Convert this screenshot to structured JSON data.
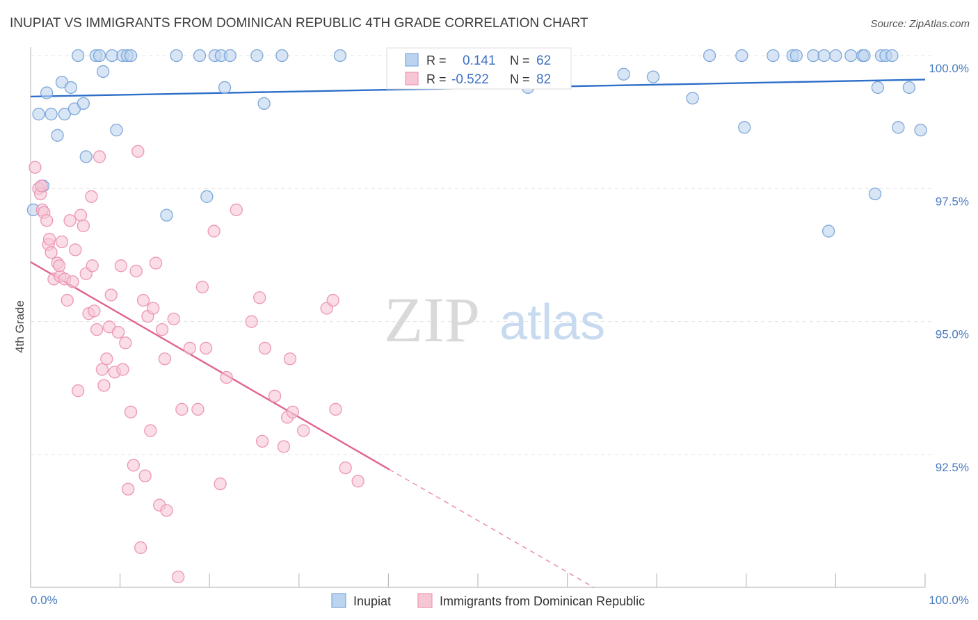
{
  "chart_data": {
    "type": "scatter",
    "title": "INUPIAT VS IMMIGRANTS FROM DOMINICAN REPUBLIC 4TH GRADE CORRELATION CHART",
    "source": "Source: ZipAtlas.com",
    "ylabel": "4th Grade",
    "xlim": [
      0,
      100
    ],
    "ylim": [
      90.0,
      100.5
    ],
    "y_ticks": [
      {
        "value": 92.5,
        "label": "92.5%"
      },
      {
        "value": 95.0,
        "label": "95.0%"
      },
      {
        "value": 97.5,
        "label": "97.5%"
      },
      {
        "value": 100.0,
        "label": "100.0%"
      }
    ],
    "x_tick_labels": {
      "left": "0.0%",
      "right": "100.0%"
    },
    "x_minor_ticks": [
      10,
      20,
      30,
      40,
      50,
      60,
      70,
      80,
      90
    ],
    "watermark": {
      "part1": "ZIP",
      "part2": "atlas"
    },
    "stats": [
      {
        "r_label": "R =",
        "r_value": "0.141",
        "n_label": "N =",
        "n_value": "62"
      },
      {
        "r_label": "R =",
        "r_value": "-0.522",
        "n_label": "N =",
        "n_value": "82"
      }
    ],
    "series": [
      {
        "name": "Inupiat",
        "fill": "#bcd3ef",
        "stroke": "#7ea8db",
        "line_color": "#2e6fc9",
        "trend": {
          "x0": 0,
          "y0": 99.23,
          "x1": 100,
          "y1": 99.55
        },
        "points": [
          [
            0.3,
            97.1
          ],
          [
            0.9,
            98.9
          ],
          [
            1.8,
            99.3
          ],
          [
            2.3,
            98.9
          ],
          [
            3.0,
            98.5
          ],
          [
            3.5,
            99.5
          ],
          [
            3.8,
            98.9
          ],
          [
            4.5,
            99.4
          ],
          [
            4.9,
            99.0
          ],
          [
            5.3,
            100.0
          ],
          [
            5.9,
            99.1
          ],
          [
            6.2,
            98.1
          ],
          [
            7.3,
            100.0
          ],
          [
            7.7,
            100.0
          ],
          [
            8.1,
            99.7
          ],
          [
            9.1,
            100.0
          ],
          [
            9.6,
            98.6
          ],
          [
            10.3,
            100.0
          ],
          [
            10.8,
            100.0
          ],
          [
            11.2,
            100.0
          ],
          [
            1.4,
            97.55
          ],
          [
            15.2,
            97.0
          ],
          [
            16.3,
            100.0
          ],
          [
            18.9,
            100.0
          ],
          [
            20.6,
            100.0
          ],
          [
            21.3,
            100.0
          ],
          [
            21.7,
            99.4
          ],
          [
            22.3,
            100.0
          ],
          [
            25.3,
            100.0
          ],
          [
            26.1,
            99.1
          ],
          [
            28.1,
            100.0
          ],
          [
            19.7,
            97.35
          ],
          [
            34.6,
            100.0
          ],
          [
            44.8,
            100.0
          ],
          [
            47.3,
            100.0
          ],
          [
            50.6,
            100.0
          ],
          [
            55.6,
            99.4
          ],
          [
            58.4,
            100.0
          ],
          [
            66.3,
            99.65
          ],
          [
            69.6,
            99.6
          ],
          [
            74.0,
            99.2
          ],
          [
            75.9,
            100.0
          ],
          [
            79.5,
            100.0
          ],
          [
            79.8,
            98.65
          ],
          [
            83.0,
            100.0
          ],
          [
            85.2,
            100.0
          ],
          [
            85.6,
            100.0
          ],
          [
            87.5,
            100.0
          ],
          [
            88.7,
            100.0
          ],
          [
            89.2,
            96.7
          ],
          [
            90.0,
            100.0
          ],
          [
            91.7,
            100.0
          ],
          [
            93.0,
            100.0
          ],
          [
            94.4,
            97.4
          ],
          [
            94.7,
            99.4
          ],
          [
            95.1,
            100.0
          ],
          [
            95.6,
            100.0
          ],
          [
            96.3,
            100.0
          ],
          [
            97.0,
            98.65
          ],
          [
            98.2,
            99.4
          ],
          [
            99.5,
            98.6
          ],
          [
            93.2,
            100.0
          ]
        ]
      },
      {
        "name": "Immigrants from Dominican Republic",
        "fill": "#f7c6d5",
        "stroke": "#ec97b3",
        "line_color": "#e0648c",
        "trend": {
          "x0": 0,
          "y0": 96.12,
          "x1": 40.1,
          "y1": 92.22
        },
        "trend_dash": {
          "x0": 40.1,
          "y0": 92.22,
          "x1": 63.0,
          "y1": 90.0
        },
        "points": [
          [
            0.5,
            97.9
          ],
          [
            0.9,
            97.5
          ],
          [
            1.1,
            97.4
          ],
          [
            1.3,
            97.1
          ],
          [
            1.5,
            97.05
          ],
          [
            1.8,
            96.9
          ],
          [
            2.0,
            96.45
          ],
          [
            2.3,
            96.3
          ],
          [
            2.6,
            95.8
          ],
          [
            3.0,
            96.1
          ],
          [
            3.3,
            95.85
          ],
          [
            3.5,
            96.5
          ],
          [
            3.8,
            95.8
          ],
          [
            4.1,
            95.4
          ],
          [
            4.4,
            96.9
          ],
          [
            4.7,
            95.75
          ],
          [
            5.0,
            96.35
          ],
          [
            5.3,
            93.7
          ],
          [
            5.6,
            97.0
          ],
          [
            5.9,
            96.8
          ],
          [
            6.2,
            95.9
          ],
          [
            6.5,
            95.15
          ],
          [
            6.8,
            97.35
          ],
          [
            7.1,
            95.2
          ],
          [
            7.4,
            94.85
          ],
          [
            7.7,
            98.1
          ],
          [
            8.0,
            94.1
          ],
          [
            8.2,
            93.8
          ],
          [
            8.5,
            94.3
          ],
          [
            8.8,
            94.9
          ],
          [
            9.0,
            95.5
          ],
          [
            9.4,
            94.05
          ],
          [
            9.8,
            94.8
          ],
          [
            10.1,
            96.05
          ],
          [
            10.3,
            94.1
          ],
          [
            10.6,
            94.6
          ],
          [
            10.9,
            91.85
          ],
          [
            11.2,
            93.3
          ],
          [
            11.5,
            92.3
          ],
          [
            11.8,
            95.95
          ],
          [
            12.0,
            98.2
          ],
          [
            12.3,
            90.75
          ],
          [
            12.6,
            95.4
          ],
          [
            12.8,
            92.1
          ],
          [
            13.1,
            95.1
          ],
          [
            13.4,
            92.95
          ],
          [
            13.7,
            95.25
          ],
          [
            14.0,
            96.1
          ],
          [
            14.4,
            91.55
          ],
          [
            14.7,
            94.85
          ],
          [
            15.0,
            94.3
          ],
          [
            15.2,
            91.45
          ],
          [
            16.0,
            95.05
          ],
          [
            16.5,
            90.2
          ],
          [
            16.9,
            93.35
          ],
          [
            17.8,
            94.5
          ],
          [
            18.7,
            93.35
          ],
          [
            19.2,
            95.65
          ],
          [
            19.6,
            94.5
          ],
          [
            20.5,
            96.7
          ],
          [
            21.2,
            91.95
          ],
          [
            21.9,
            93.95
          ],
          [
            23.0,
            97.1
          ],
          [
            24.7,
            95.0
          ],
          [
            25.6,
            95.45
          ],
          [
            25.9,
            92.75
          ],
          [
            26.2,
            94.5
          ],
          [
            27.3,
            93.6
          ],
          [
            28.3,
            92.65
          ],
          [
            28.7,
            93.2
          ],
          [
            29.0,
            94.3
          ],
          [
            29.3,
            93.3
          ],
          [
            30.5,
            92.95
          ],
          [
            33.1,
            95.25
          ],
          [
            33.8,
            95.4
          ],
          [
            34.1,
            93.35
          ],
          [
            35.2,
            92.25
          ],
          [
            36.6,
            92.0
          ],
          [
            2.1,
            96.55
          ],
          [
            6.9,
            96.05
          ],
          [
            1.2,
            97.55
          ],
          [
            3.2,
            96.05
          ]
        ]
      }
    ]
  }
}
